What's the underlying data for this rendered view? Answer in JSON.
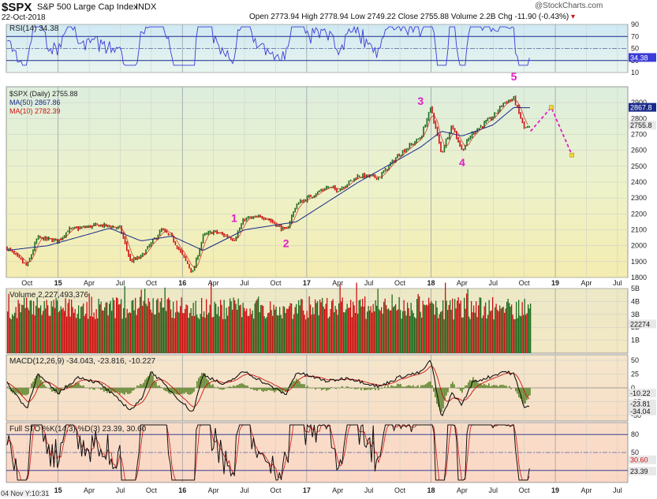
{
  "header": {
    "ticker": "$SPX",
    "name": "S&P 500 Large Cap Index",
    "exchange": "INDX",
    "date": "22-Oct-2018",
    "quote": {
      "open_label": "Open",
      "open": "2773.94",
      "high_label": "High",
      "high": "2778.94",
      "low_label": "Low",
      "low": "2749.22",
      "close_label": "Close",
      "close": "2755.88",
      "volume_label": "Volume",
      "volume": "2.2B",
      "chg_label": "Chg",
      "chg": "-11.90 (-0.43%)"
    },
    "watermark": "@StockCharts.com"
  },
  "footer": {
    "stamp": "04 Nov Y:10:31"
  },
  "colors": {
    "up": "#1e6b1e",
    "down": "#cc1111",
    "ma50": "#1a2a8c",
    "ma10": "#cc1111",
    "rsi": "#3b3bd8",
    "wave": "#e01fc8",
    "forecast": "#e01fc8",
    "macd_hist": "#6b8e3a"
  },
  "chart_data": [
    {
      "type": "line",
      "panel": "rsi",
      "legend": "RSI(14) 34.38",
      "ylim": [
        10,
        90
      ],
      "ticks": [
        10,
        30,
        50,
        70,
        90
      ],
      "levels": [
        30,
        70
      ],
      "last_value_label": "34.38",
      "last_value": 34.38
    },
    {
      "type": "line",
      "panel": "price",
      "legend": [
        {
          "name": "$SPX (Daily)",
          "value": "2755.88"
        },
        {
          "name": "MA(50)",
          "value": "2867.86"
        },
        {
          "name": "MA(10)",
          "value": "2782.39"
        }
      ],
      "ylim": [
        1800,
        3000
      ],
      "ticks": [
        1800,
        1900,
        2000,
        2100,
        2200,
        2300,
        2400,
        2500,
        2600,
        2700,
        2800,
        2900
      ],
      "price_labels": [
        "2867.8",
        "2755.8"
      ],
      "x_ticks": [
        "Oct",
        "15",
        "Apr",
        "Jul",
        "Oct",
        "16",
        "Apr",
        "Jul",
        "Oct",
        "17",
        "Apr",
        "Jul",
        "Oct",
        "18",
        "Apr",
        "Jul",
        "Oct",
        "19",
        "Apr",
        "Jul"
      ],
      "x_months": [
        "2014-10",
        "2015-01",
        "2015-04",
        "2015-07",
        "2015-10",
        "2016-01",
        "2016-04",
        "2016-07",
        "2016-10",
        "2017-01",
        "2017-04",
        "2017-07",
        "2017-10",
        "2018-01",
        "2018-04",
        "2018-07",
        "2018-10",
        "2019-01",
        "2019-04",
        "2019-07"
      ],
      "close_points": [
        [
          "2014-08",
          1990
        ],
        [
          "2014-10",
          1870
        ],
        [
          "2014-11",
          2050
        ],
        [
          "2015-01",
          2030
        ],
        [
          "2015-02",
          2100
        ],
        [
          "2015-05",
          2130
        ],
        [
          "2015-07",
          2110
        ],
        [
          "2015-08",
          1900
        ],
        [
          "2015-09",
          1930
        ],
        [
          "2015-11",
          2100
        ],
        [
          "2015-12",
          2050
        ],
        [
          "2016-02",
          1830
        ],
        [
          "2016-03",
          2060
        ],
        [
          "2016-04",
          2090
        ],
        [
          "2016-06",
          2040
        ],
        [
          "2016-07",
          2170
        ],
        [
          "2016-09",
          2180
        ],
        [
          "2016-11",
          2090
        ],
        [
          "2016-12",
          2260
        ],
        [
          "2017-03",
          2370
        ],
        [
          "2017-04",
          2350
        ],
        [
          "2017-06",
          2440
        ],
        [
          "2017-08",
          2430
        ],
        [
          "2017-10",
          2580
        ],
        [
          "2017-12",
          2680
        ],
        [
          "2018-01",
          2870
        ],
        [
          "2018-02",
          2580
        ],
        [
          "2018-03",
          2760
        ],
        [
          "2018-04",
          2600
        ],
        [
          "2018-05",
          2710
        ],
        [
          "2018-06",
          2760
        ],
        [
          "2018-07",
          2810
        ],
        [
          "2018-08",
          2900
        ],
        [
          "2018-09",
          2925
        ],
        [
          "2018-10",
          2740
        ]
      ],
      "ma50_points": [
        [
          "2014-08",
          1970
        ],
        [
          "2014-12",
          2000
        ],
        [
          "2015-06",
          2110
        ],
        [
          "2015-09",
          2030
        ],
        [
          "2015-12",
          2060
        ],
        [
          "2016-03",
          1970
        ],
        [
          "2016-07",
          2100
        ],
        [
          "2016-12",
          2150
        ],
        [
          "2017-06",
          2400
        ],
        [
          "2017-12",
          2620
        ],
        [
          "2018-02",
          2720
        ],
        [
          "2018-04",
          2690
        ],
        [
          "2018-07",
          2760
        ],
        [
          "2018-09",
          2870
        ],
        [
          "2018-10",
          2868
        ]
      ],
      "forecast_points": [
        [
          "2018-10",
          2720
        ],
        [
          "2018-12",
          2870
        ],
        [
          "2019-02",
          2570
        ]
      ],
      "wave_labels": [
        {
          "label": "1",
          "date": "2016-06",
          "value": 2150
        },
        {
          "label": "2",
          "date": "2016-11",
          "value": 1990
        },
        {
          "label": "3",
          "date": "2017-12",
          "value": 2885
        },
        {
          "label": "4",
          "date": "2018-04",
          "value": 2500
        },
        {
          "label": "5",
          "date": "2018-09",
          "value": 3040
        }
      ]
    },
    {
      "type": "bar",
      "panel": "volume",
      "legend": "Volume 2,227,493,376",
      "ylim": [
        0,
        5
      ],
      "unit": "B",
      "ticks": [
        "1B",
        "2B",
        "3B",
        "4B",
        "5B"
      ],
      "last_value_label": "22274",
      "last_value": 2.23
    },
    {
      "type": "line",
      "panel": "macd",
      "legend": "MACD(12,26,9) -34.043, -23.816, -10.227",
      "ylim": [
        -60,
        60
      ],
      "ticks": [
        -50,
        -25,
        0,
        25,
        50
      ],
      "last_value_labels": [
        "-10.22",
        "-23.81",
        "-34.04"
      ],
      "macd_points": [
        [
          "2014-08",
          10
        ],
        [
          "2014-10",
          -38
        ],
        [
          "2014-11",
          25
        ],
        [
          "2015-01",
          -10
        ],
        [
          "2015-03",
          20
        ],
        [
          "2015-05",
          8
        ],
        [
          "2015-08",
          -40
        ],
        [
          "2015-09",
          -22
        ],
        [
          "2015-10",
          30
        ],
        [
          "2015-12",
          -8
        ],
        [
          "2016-02",
          -45
        ],
        [
          "2016-03",
          25
        ],
        [
          "2016-05",
          5
        ],
        [
          "2016-07",
          30
        ],
        [
          "2016-09",
          8
        ],
        [
          "2016-11",
          -12
        ],
        [
          "2016-12",
          28
        ],
        [
          "2017-03",
          12
        ],
        [
          "2017-05",
          18
        ],
        [
          "2017-08",
          2
        ],
        [
          "2017-10",
          20
        ],
        [
          "2017-12",
          28
        ],
        [
          "2018-01",
          50
        ],
        [
          "2018-02",
          -55
        ],
        [
          "2018-03",
          -10
        ],
        [
          "2018-04",
          -30
        ],
        [
          "2018-05",
          10
        ],
        [
          "2018-07",
          22
        ],
        [
          "2018-08",
          30
        ],
        [
          "2018-09",
          25
        ],
        [
          "2018-10",
          -34
        ]
      ]
    },
    {
      "type": "line",
      "panel": "stochastic",
      "legend": "Full STO %K(14,3) %D(3) 23.39, 30.60",
      "ylim": [
        0,
        100
      ],
      "ticks": [
        20,
        50,
        80
      ],
      "levels": [
        20,
        80
      ],
      "last_value_labels": [
        "30.60",
        "23.39"
      ]
    }
  ]
}
